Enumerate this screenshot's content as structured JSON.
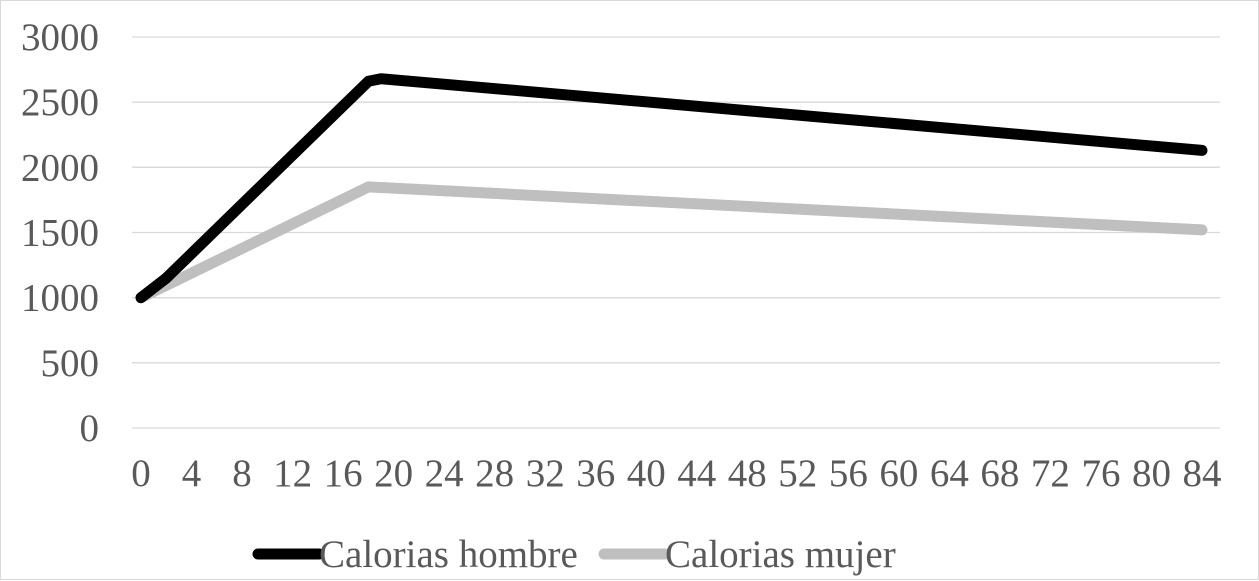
{
  "chart_data": {
    "type": "line",
    "x": [
      0,
      4,
      8,
      12,
      16,
      20,
      24,
      28,
      32,
      36,
      40,
      44,
      48,
      52,
      56,
      60,
      64,
      68,
      72,
      76,
      80,
      84
    ],
    "x_tick_labels": [
      "0",
      "4",
      "8",
      "12",
      "16",
      "20",
      "24",
      "28",
      "32",
      "36",
      "40",
      "44",
      "48",
      "52",
      "56",
      "60",
      "64",
      "68",
      "72",
      "76",
      "80",
      "84"
    ],
    "y_tick_labels": [
      "0",
      "500",
      "1000",
      "1500",
      "2000",
      "2500",
      "3000"
    ],
    "y_ticks": [
      0,
      500,
      1000,
      1500,
      2000,
      2500,
      3000
    ],
    "ylim": [
      0,
      3000
    ],
    "grid": "horizontal",
    "legend_position": "bottom",
    "series": [
      {
        "name": "Calorias hombre",
        "color": "#000000",
        "points": [
          {
            "x": 0,
            "y": 1000
          },
          {
            "x": 2,
            "y": 1150
          },
          {
            "x": 18,
            "y": 2660
          },
          {
            "x": 19,
            "y": 2680
          },
          {
            "x": 84,
            "y": 2130
          }
        ]
      },
      {
        "name": "Calorias mujer",
        "color": "#bfbfbf",
        "points": [
          {
            "x": 0,
            "y": 1000
          },
          {
            "x": 18,
            "y": 1850
          },
          {
            "x": 84,
            "y": 1520
          }
        ]
      }
    ]
  }
}
